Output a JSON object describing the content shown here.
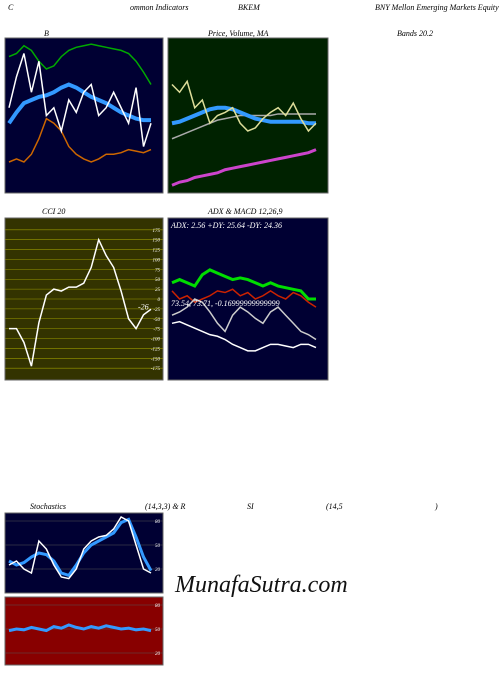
{
  "header": {
    "c": "C",
    "common": "ommon Indicators",
    "symbol": "BKEM",
    "name": "BNY Mellon Emerging Markets Equity ETF",
    "b": "B",
    "price": "Price, Volume, MA",
    "bands": "Bands 20.2",
    "stoch": "Stochastics",
    "stoch_params": "(14,3,3) & R",
    "si": "SI",
    "rsi_params": "(14,5",
    "close": ")",
    "watermark": "MunafaSutra.com"
  },
  "chart_data": [
    {
      "type": "line",
      "background": "#000033",
      "ylim": [
        0,
        100
      ],
      "series": [
        {
          "color": "#00aa00",
          "values": [
            88,
            90,
            95,
            92,
            85,
            80,
            82,
            88,
            92,
            94,
            95,
            96,
            95,
            94,
            93,
            92,
            90,
            85,
            78,
            70
          ]
        },
        {
          "color": "#cc6600",
          "values": [
            20,
            22,
            20,
            25,
            35,
            48,
            45,
            40,
            30,
            25,
            22,
            20,
            22,
            25,
            25,
            26,
            28,
            27,
            26,
            28
          ]
        },
        {
          "color": "#3399ff",
          "width": 4,
          "values": [
            45,
            52,
            58,
            60,
            62,
            63,
            65,
            68,
            70,
            68,
            65,
            62,
            60,
            58,
            55,
            52,
            50,
            48,
            47,
            47
          ]
        },
        {
          "color": "#ffffff",
          "values": [
            55,
            75,
            90,
            65,
            85,
            50,
            55,
            40,
            60,
            52,
            65,
            70,
            50,
            55,
            65,
            55,
            45,
            68,
            30,
            45
          ]
        }
      ]
    },
    {
      "type": "line",
      "background": "#002200",
      "ylim": [
        0,
        100
      ],
      "series": [
        {
          "color": "#cc44cc",
          "width": 3,
          "values": [
            5,
            7,
            8,
            10,
            11,
            12,
            13,
            15,
            16,
            17,
            18,
            19,
            20,
            21,
            22,
            23,
            24,
            25,
            26,
            28
          ]
        },
        {
          "color": "#aaaaaa",
          "values": [
            35,
            37,
            39,
            41,
            43,
            45,
            47,
            48,
            49,
            50,
            50,
            50,
            50,
            50,
            51,
            51,
            51,
            51,
            51,
            51
          ]
        },
        {
          "color": "#3399ff",
          "width": 4,
          "values": [
            45,
            46,
            48,
            50,
            52,
            54,
            55,
            55,
            54,
            52,
            50,
            48,
            47,
            46,
            46,
            46,
            46,
            46,
            45,
            45
          ]
        },
        {
          "color": "#dddd99",
          "values": [
            70,
            65,
            72,
            55,
            60,
            45,
            50,
            52,
            55,
            45,
            40,
            42,
            48,
            52,
            55,
            50,
            58,
            48,
            40,
            45
          ]
        }
      ]
    },
    {
      "type": "line",
      "title": "CCI 20",
      "background": "#333300",
      "grid": true,
      "ylim": [
        -205,
        205
      ],
      "yticks": [
        175,
        150,
        125,
        100,
        75,
        50,
        25,
        0,
        -25,
        -50,
        -75,
        -100,
        -125,
        -150,
        -175
      ],
      "series": [
        {
          "color": "#ffffff",
          "values": [
            -75,
            -75,
            -110,
            -170,
            -60,
            10,
            25,
            20,
            30,
            30,
            40,
            80,
            150,
            110,
            80,
            20,
            -50,
            -75,
            -40,
            -26
          ]
        }
      ]
    },
    {
      "type": "line",
      "title": "ADX  & MACD 12,26,9",
      "background": "#000033",
      "ylim": [
        0,
        100
      ],
      "adx_text": "ADX: 2.56  +DY: 25.64  -DY: 24.36",
      "macd_text": "73.54,  73.71,  -0.16999999999999",
      "series": [
        {
          "color": "#00dd00",
          "width": 3,
          "values": [
            60,
            62,
            60,
            58,
            65,
            68,
            66,
            64,
            62,
            63,
            62,
            60,
            58,
            60,
            58,
            57,
            56,
            55,
            50,
            50
          ]
        },
        {
          "color": "#cc2200",
          "values": [
            55,
            50,
            52,
            48,
            50,
            52,
            55,
            54,
            56,
            52,
            54,
            50,
            52,
            55,
            52,
            50,
            54,
            52,
            48,
            45
          ]
        },
        {
          "color": "#cccccc",
          "values": [
            40,
            42,
            45,
            50,
            48,
            42,
            35,
            30,
            40,
            45,
            42,
            38,
            35,
            42,
            45,
            40,
            35,
            30,
            28,
            25
          ]
        },
        {
          "color": "#ffffff",
          "values": [
            35,
            36,
            34,
            32,
            30,
            28,
            27,
            25,
            22,
            20,
            18,
            18,
            20,
            22,
            22,
            21,
            20,
            22,
            22,
            20
          ]
        }
      ]
    },
    {
      "type": "line",
      "background": "#000033",
      "ylim": [
        -10,
        90
      ],
      "yticks": [
        80,
        50,
        20
      ],
      "series": [
        {
          "color": "#3399ff",
          "width": 3,
          "values": [
            30,
            25,
            28,
            35,
            40,
            38,
            30,
            15,
            12,
            25,
            40,
            50,
            55,
            60,
            65,
            78,
            82,
            60,
            35,
            18
          ]
        },
        {
          "color": "#ffffff",
          "values": [
            25,
            30,
            20,
            15,
            55,
            45,
            25,
            10,
            8,
            20,
            45,
            55,
            60,
            62,
            70,
            85,
            80,
            50,
            20,
            15
          ]
        }
      ]
    },
    {
      "type": "line",
      "background": "#880000",
      "ylim": [
        5,
        90
      ],
      "yticks": [
        80,
        50,
        20
      ],
      "series": [
        {
          "color": "#3399ff",
          "width": 3,
          "values": [
            48,
            50,
            49,
            52,
            50,
            48,
            53,
            51,
            55,
            52,
            50,
            53,
            51,
            54,
            52,
            50,
            51,
            49,
            50,
            48
          ]
        }
      ]
    }
  ]
}
